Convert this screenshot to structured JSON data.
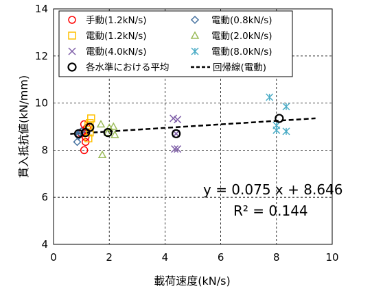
{
  "chart_data": {
    "type": "scatter",
    "xlabel": "載荷速度(kN/s)",
    "ylabel": "貫入抵抗値(kN/mm)",
    "xlim": [
      0,
      10
    ],
    "ylim": [
      4,
      14
    ],
    "xticks": [
      "0",
      "2",
      "4",
      "6",
      "8",
      "10"
    ],
    "yticks": [
      "4",
      "6",
      "8",
      "10",
      "12",
      "14"
    ],
    "grid": "dashed",
    "legend_position": "top-inside",
    "series": [
      {
        "name": "手動(1.2kN/s)",
        "marker": "circle",
        "color": "#ff0000",
        "points": [
          [
            1.1,
            8.0
          ],
          [
            1.15,
            8.35
          ],
          [
            1.05,
            8.8
          ],
          [
            1.2,
            8.95
          ],
          [
            1.1,
            9.1
          ],
          [
            1.0,
            8.7
          ],
          [
            1.15,
            8.55
          ]
        ]
      },
      {
        "name": "電動(0.8kN/s)",
        "marker": "diamond",
        "color": "#44719f",
        "points": [
          [
            0.85,
            8.35
          ],
          [
            0.9,
            8.65
          ],
          [
            0.95,
            8.75
          ],
          [
            0.9,
            8.6
          ],
          [
            1.0,
            8.8
          ]
        ]
      },
      {
        "name": "電動(1.2kN/s)",
        "marker": "square",
        "color": "#ffc000",
        "points": [
          [
            1.25,
            8.5
          ],
          [
            1.3,
            8.75
          ],
          [
            1.3,
            8.95
          ],
          [
            1.3,
            9.15
          ],
          [
            1.35,
            9.35
          ],
          [
            1.25,
            9.05
          ]
        ]
      },
      {
        "name": "電動(2.0kN/s)",
        "marker": "triangle",
        "color": "#9bbb59",
        "points": [
          [
            1.75,
            7.8
          ],
          [
            1.7,
            9.1
          ],
          [
            2.0,
            8.95
          ],
          [
            2.15,
            9.0
          ],
          [
            2.2,
            8.65
          ],
          [
            1.95,
            8.75
          ]
        ]
      },
      {
        "name": "電動(4.0kN/s)",
        "marker": "x",
        "color": "#7f5fa8",
        "points": [
          [
            4.3,
            9.35
          ],
          [
            4.45,
            9.3
          ],
          [
            4.35,
            8.05
          ],
          [
            4.45,
            8.05
          ],
          [
            4.4,
            8.7
          ]
        ]
      },
      {
        "name": "電動(8.0kN/s)",
        "marker": "asterisk",
        "color": "#4bacc6",
        "points": [
          [
            7.75,
            10.25
          ],
          [
            8.35,
            9.85
          ],
          [
            8.0,
            9.05
          ],
          [
            8.0,
            8.85
          ],
          [
            8.35,
            8.8
          ]
        ]
      },
      {
        "name": "各水準における平均",
        "marker": "circle-bold",
        "color": "#000000",
        "points": [
          [
            0.9,
            8.7
          ],
          [
            1.15,
            8.75
          ],
          [
            1.3,
            8.97
          ],
          [
            1.95,
            8.75
          ],
          [
            4.4,
            8.7
          ],
          [
            8.1,
            9.35
          ]
        ]
      },
      {
        "name": "回帰線(電動)",
        "marker": "dashed-line",
        "color": "#000000",
        "line": [
          [
            0.6,
            8.691
          ],
          [
            9.4,
            9.351
          ]
        ]
      }
    ],
    "annotations": [
      "y = 0.075 x + 8.646",
      "R² = 0.144"
    ]
  }
}
